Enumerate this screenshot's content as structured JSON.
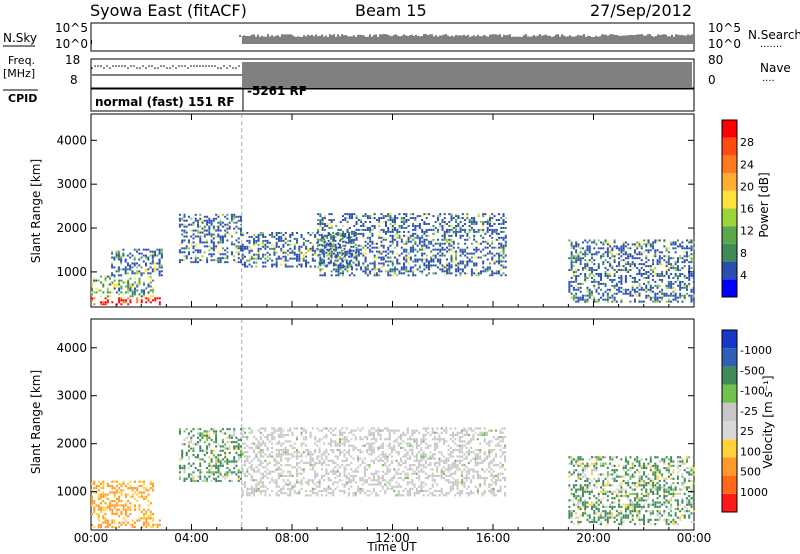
{
  "header": {
    "station": "Syowa East (fitACF)",
    "beam": "Beam 15",
    "date": "27/Sep/2012"
  },
  "strip": {
    "left_nsky": "N.Sky",
    "left_freq_top": "Freq.",
    "left_freq_unit": "[MHz]",
    "left_cpid": "CPID",
    "right_nsearch": "N.Search",
    "right_nsearch_dots": "·······",
    "right_nave": "Nave",
    "right_nave_dots": "····",
    "nsky_ticks": [
      "10^5",
      "10^0"
    ],
    "nsearch_ticks": [
      "10^5",
      "10^0"
    ],
    "freq_ticks": [
      "18",
      "8"
    ],
    "nave_ticks": [
      "80",
      "0"
    ],
    "cpid_label_1": "normal (fast) 151 RF",
    "cpid_label_2": "-5261 RF"
  },
  "colors": {
    "power": [
      "#0000ff",
      "#2a4fb0",
      "#3f8a57",
      "#5aa84a",
      "#9bd53a",
      "#ffe23a",
      "#ffae33",
      "#ff7a1e",
      "#ff4a12",
      "#ff0000"
    ],
    "velocity": [
      "#1a37c8",
      "#2f5fb8",
      "#3f8a57",
      "#72c04f",
      "#c7c7c7",
      "#d8d8d8",
      "#ffd23a",
      "#ff9a2a",
      "#ff6a1a",
      "#ff1a1a"
    ]
  },
  "chart_data": [
    {
      "type": "heatmap",
      "name": "power",
      "xlabel": "",
      "ylabel": "Slant Range [km]",
      "x_ticks": [
        "00:00",
        "04:00",
        "08:00",
        "12:00",
        "16:00",
        "20:00",
        "00:00"
      ],
      "y_ticks": [
        1000,
        2000,
        3000,
        4000
      ],
      "ylim": [
        200,
        4600
      ],
      "colorbar": {
        "label": "Power [dB]",
        "ticks": [
          4,
          8,
          12,
          16,
          20,
          24,
          28
        ]
      },
      "ranges": [
        {
          "t0": 0.0,
          "t1": 2.7,
          "r0": 240,
          "r1": 420,
          "c": "red"
        },
        {
          "t0": 0.0,
          "t1": 2.5,
          "r0": 420,
          "r1": 900,
          "c": "mix"
        },
        {
          "t0": 0.8,
          "t1": 2.8,
          "r0": 900,
          "r1": 1500,
          "c": "blue"
        },
        {
          "t0": 3.5,
          "t1": 6.0,
          "r0": 1200,
          "r1": 2300,
          "c": "blue"
        },
        {
          "t0": 6.0,
          "t1": 10.5,
          "r0": 1100,
          "r1": 1900,
          "c": "blue"
        },
        {
          "t0": 9.0,
          "t1": 16.5,
          "r0": 900,
          "r1": 2300,
          "c": "blue"
        },
        {
          "t0": 19.0,
          "t1": 24.0,
          "r0": 300,
          "r1": 1700,
          "c": "blue"
        }
      ]
    },
    {
      "type": "heatmap",
      "name": "velocity",
      "xlabel": "Time UT",
      "ylabel": "Slant Range [km]",
      "x_ticks": [
        "00:00",
        "04:00",
        "08:00",
        "12:00",
        "16:00",
        "20:00",
        "00:00"
      ],
      "y_ticks": [
        1000,
        2000,
        3000,
        4000
      ],
      "ylim": [
        200,
        4600
      ],
      "colorbar": {
        "label": "Velocity [m s⁻¹]",
        "ticks": [
          1000,
          500,
          100,
          25,
          -25,
          -100,
          -500,
          -1000
        ]
      },
      "ranges": [
        {
          "t0": 0.0,
          "t1": 2.7,
          "r0": 240,
          "r1": 420,
          "c": "orange"
        },
        {
          "t0": 0.0,
          "t1": 2.5,
          "r0": 420,
          "r1": 1200,
          "c": "orange"
        },
        {
          "t0": 3.5,
          "t1": 6.0,
          "r0": 1200,
          "r1": 2300,
          "c": "green"
        },
        {
          "t0": 6.0,
          "t1": 16.5,
          "r0": 900,
          "r1": 2300,
          "c": "grey"
        },
        {
          "t0": 19.0,
          "t1": 24.0,
          "r0": 300,
          "r1": 1700,
          "c": "green"
        }
      ]
    }
  ]
}
